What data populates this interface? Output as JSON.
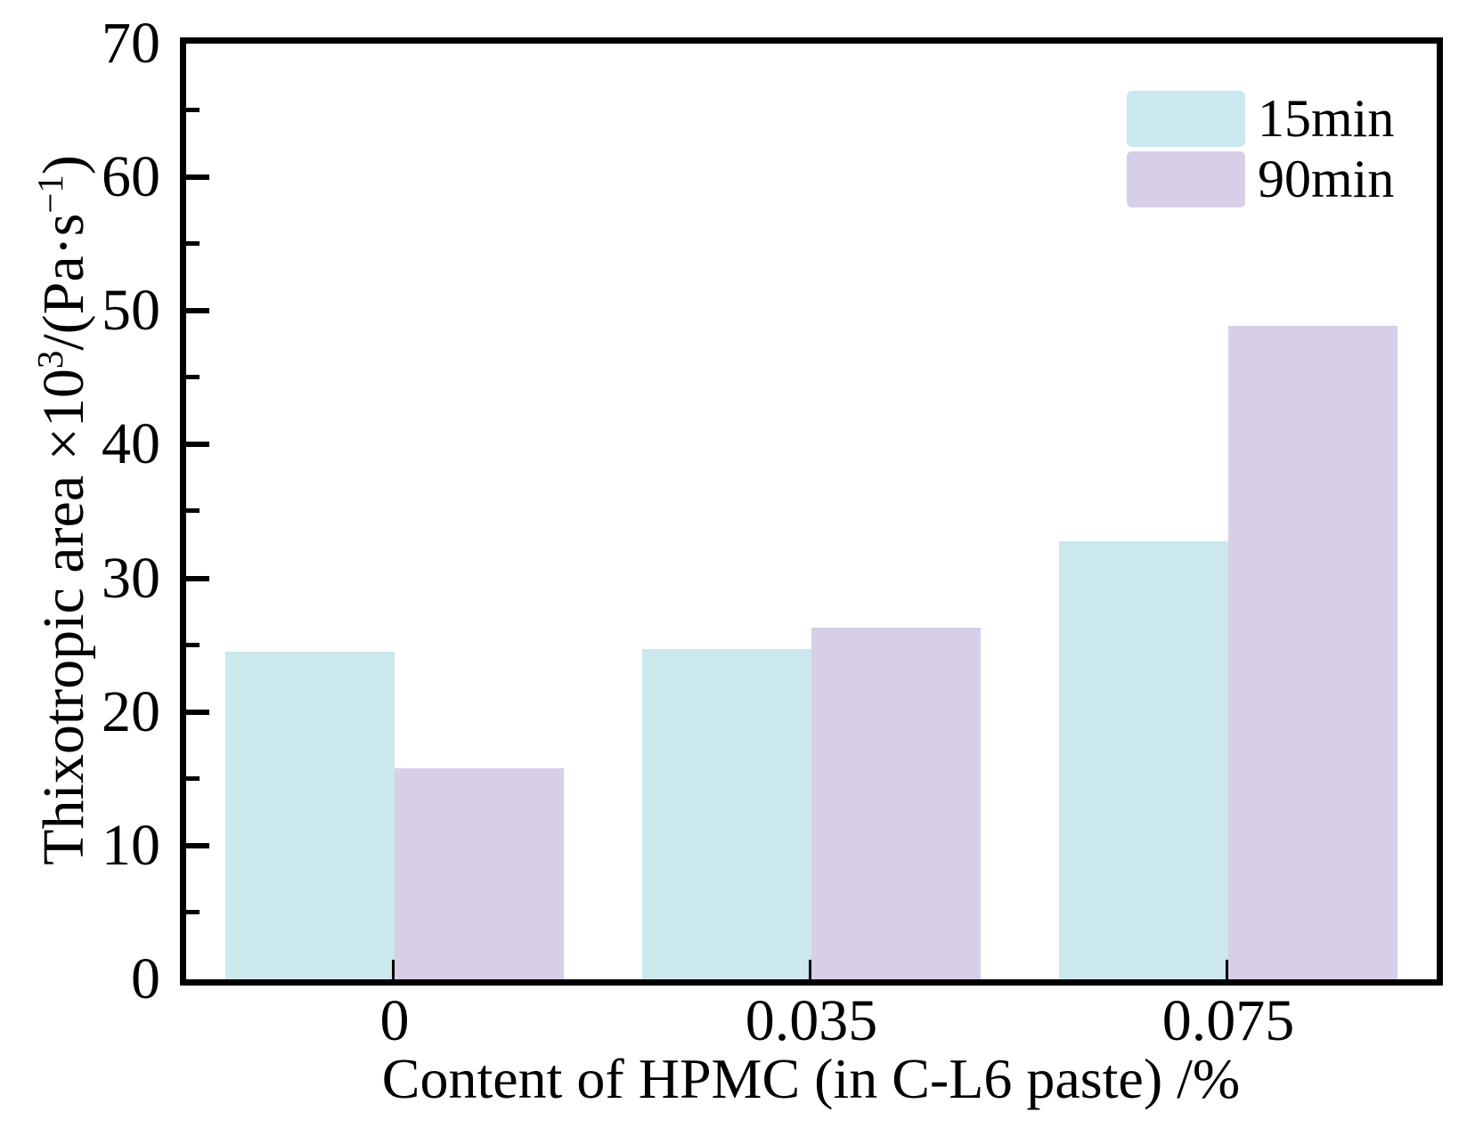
{
  "chart_data": {
    "type": "bar",
    "title": "",
    "categories": [
      "0",
      "0.035",
      "0.075"
    ],
    "series": [
      {
        "name": "15min",
        "color": "#cae8ee",
        "values": [
          24.5,
          24.7,
          32.8
        ]
      },
      {
        "name": "90min",
        "color": "#d7cee7",
        "values": [
          15.8,
          26.3,
          48.9
        ]
      }
    ],
    "xlabel": "Content of HPMC (in C-L6 paste) /%",
    "ylabel": "Thixotropic area ×10³/(Pa·s⁻¹)",
    "ylabel_parts": {
      "prefix": "Thixotropic area ×10",
      "sup1": "3",
      "mid": "/(Pa·s",
      "sup2": "−1",
      "suffix": ")"
    },
    "ylim": [
      0,
      70
    ],
    "yticks": [
      "70",
      "60",
      "50",
      "40",
      "30",
      "20",
      "10",
      "0"
    ],
    "ytick_values": [
      70,
      60,
      50,
      40,
      30,
      20,
      10,
      0
    ],
    "minor_tick_step": 5,
    "grid": false,
    "frame": true,
    "tick_direction": "in",
    "legend_position": "top-right"
  },
  "colors": {
    "series_15min": "#cae8ee",
    "series_90min": "#d7cee7",
    "axis": "#000000",
    "background": "#ffffff"
  }
}
